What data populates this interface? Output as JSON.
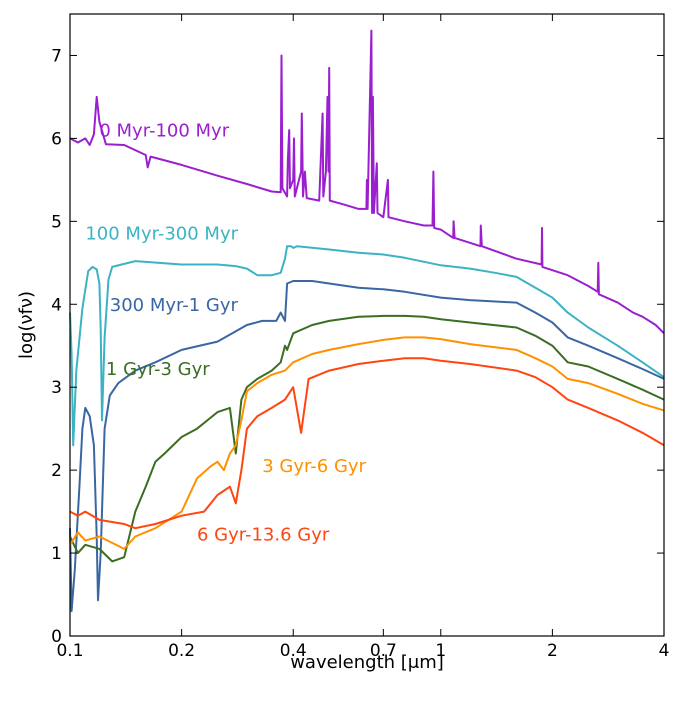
{
  "chart_data": {
    "type": "line",
    "title": "",
    "xlabel": "wavelength [μm]",
    "ylabel": "log(νfν)",
    "xscale": "log",
    "xlim": [
      0.1,
      4
    ],
    "ylim": [
      0,
      7.5
    ],
    "grid": false,
    "legend": "inline labels",
    "x_ticks": [
      {
        "value": 0.1,
        "label": "0.1"
      },
      {
        "value": 0.2,
        "label": "0.2"
      },
      {
        "value": 0.4,
        "label": "0.4"
      },
      {
        "value": 0.7,
        "label": "0.7"
      },
      {
        "value": 1,
        "label": "1"
      },
      {
        "value": 2,
        "label": "2"
      },
      {
        "value": 4,
        "label": "4"
      }
    ],
    "y_ticks": [
      {
        "value": 0,
        "label": "0"
      },
      {
        "value": 1,
        "label": "1"
      },
      {
        "value": 2,
        "label": "2"
      },
      {
        "value": 3,
        "label": "3"
      },
      {
        "value": 4,
        "label": "4"
      },
      {
        "value": 5,
        "label": "5"
      },
      {
        "value": 6,
        "label": "6"
      },
      {
        "value": 7,
        "label": "7"
      }
    ],
    "series": [
      {
        "name": "0 Myr-100 Myr",
        "color": "#9b1fcf",
        "label_at": [
          0.12,
          6.02
        ],
        "points": [
          [
            0.1,
            6.0
          ],
          [
            0.105,
            5.95
          ],
          [
            0.11,
            6.0
          ],
          [
            0.113,
            5.92
          ],
          [
            0.116,
            6.05
          ],
          [
            0.118,
            6.5
          ],
          [
            0.12,
            6.2
          ],
          [
            0.125,
            5.93
          ],
          [
            0.14,
            5.92
          ],
          [
            0.16,
            5.8
          ],
          [
            0.162,
            5.65
          ],
          [
            0.165,
            5.78
          ],
          [
            0.2,
            5.68
          ],
          [
            0.25,
            5.55
          ],
          [
            0.3,
            5.45
          ],
          [
            0.35,
            5.36
          ],
          [
            0.37,
            5.35
          ],
          [
            0.372,
            7.0
          ],
          [
            0.374,
            5.4
          ],
          [
            0.385,
            5.3
          ],
          [
            0.387,
            5.75
          ],
          [
            0.39,
            6.1
          ],
          [
            0.392,
            5.4
          ],
          [
            0.4,
            5.5
          ],
          [
            0.402,
            6.0
          ],
          [
            0.404,
            5.3
          ],
          [
            0.42,
            5.6
          ],
          [
            0.422,
            6.3
          ],
          [
            0.425,
            5.3
          ],
          [
            0.43,
            5.6
          ],
          [
            0.435,
            5.28
          ],
          [
            0.47,
            5.25
          ],
          [
            0.48,
            6.3
          ],
          [
            0.482,
            5.3
          ],
          [
            0.49,
            5.6
          ],
          [
            0.495,
            6.5
          ],
          [
            0.498,
            5.6
          ],
          [
            0.5,
            6.85
          ],
          [
            0.502,
            5.25
          ],
          [
            0.55,
            5.2
          ],
          [
            0.6,
            5.15
          ],
          [
            0.63,
            5.15
          ],
          [
            0.632,
            5.5
          ],
          [
            0.635,
            5.15
          ],
          [
            0.65,
            7.3
          ],
          [
            0.653,
            5.1
          ],
          [
            0.656,
            6.5
          ],
          [
            0.66,
            5.1
          ],
          [
            0.672,
            5.7
          ],
          [
            0.675,
            5.1
          ],
          [
            0.7,
            5.05
          ],
          [
            0.72,
            5.5
          ],
          [
            0.723,
            5.05
          ],
          [
            0.8,
            5.0
          ],
          [
            0.9,
            4.95
          ],
          [
            0.95,
            4.95
          ],
          [
            0.955,
            5.6
          ],
          [
            0.96,
            4.92
          ],
          [
            1.0,
            4.9
          ],
          [
            1.08,
            4.8
          ],
          [
            1.083,
            5.0
          ],
          [
            1.09,
            4.8
          ],
          [
            1.28,
            4.7
          ],
          [
            1.282,
            4.95
          ],
          [
            1.29,
            4.7
          ],
          [
            1.6,
            4.55
          ],
          [
            1.87,
            4.48
          ],
          [
            1.875,
            4.92
          ],
          [
            1.88,
            4.45
          ],
          [
            2.2,
            4.35
          ],
          [
            2.5,
            4.22
          ],
          [
            2.65,
            4.15
          ],
          [
            2.66,
            4.5
          ],
          [
            2.67,
            4.12
          ],
          [
            3.0,
            4.02
          ],
          [
            3.3,
            3.9
          ],
          [
            3.5,
            3.85
          ],
          [
            3.8,
            3.75
          ],
          [
            4.0,
            3.65
          ]
        ]
      },
      {
        "name": "100 Myr-300 Myr",
        "color": "#3bb3c3",
        "label_at": [
          0.11,
          4.78
        ],
        "points": [
          [
            0.1,
            3.9
          ],
          [
            0.101,
            3.4
          ],
          [
            0.102,
            2.3
          ],
          [
            0.104,
            3.2
          ],
          [
            0.108,
            3.95
          ],
          [
            0.112,
            4.4
          ],
          [
            0.115,
            4.45
          ],
          [
            0.118,
            4.42
          ],
          [
            0.12,
            4.25
          ],
          [
            0.121,
            3.7
          ],
          [
            0.122,
            2.6
          ],
          [
            0.124,
            3.6
          ],
          [
            0.127,
            4.3
          ],
          [
            0.13,
            4.45
          ],
          [
            0.15,
            4.52
          ],
          [
            0.2,
            4.48
          ],
          [
            0.25,
            4.48
          ],
          [
            0.28,
            4.46
          ],
          [
            0.3,
            4.43
          ],
          [
            0.32,
            4.35
          ],
          [
            0.35,
            4.35
          ],
          [
            0.37,
            4.38
          ],
          [
            0.38,
            4.55
          ],
          [
            0.385,
            4.7
          ],
          [
            0.395,
            4.7
          ],
          [
            0.4,
            4.68
          ],
          [
            0.41,
            4.7
          ],
          [
            0.5,
            4.66
          ],
          [
            0.6,
            4.62
          ],
          [
            0.7,
            4.6
          ],
          [
            0.8,
            4.56
          ],
          [
            1.0,
            4.47
          ],
          [
            1.2,
            4.43
          ],
          [
            1.4,
            4.38
          ],
          [
            1.6,
            4.33
          ],
          [
            1.8,
            4.2
          ],
          [
            2.0,
            4.08
          ],
          [
            2.2,
            3.9
          ],
          [
            2.5,
            3.72
          ],
          [
            3.0,
            3.5
          ],
          [
            3.5,
            3.3
          ],
          [
            4.0,
            3.12
          ]
        ]
      },
      {
        "name": "300 Myr-1 Gyr",
        "color": "#3a67a2",
        "label_at": [
          0.128,
          3.92
        ],
        "points": [
          [
            0.1,
            1.3
          ],
          [
            0.101,
            0.3
          ],
          [
            0.103,
            0.8
          ],
          [
            0.106,
            1.8
          ],
          [
            0.108,
            2.5
          ],
          [
            0.11,
            2.75
          ],
          [
            0.113,
            2.65
          ],
          [
            0.116,
            2.3
          ],
          [
            0.118,
            1.2
          ],
          [
            0.119,
            0.43
          ],
          [
            0.121,
            1.0
          ],
          [
            0.124,
            2.5
          ],
          [
            0.128,
            2.9
          ],
          [
            0.135,
            3.05
          ],
          [
            0.15,
            3.2
          ],
          [
            0.17,
            3.3
          ],
          [
            0.2,
            3.45
          ],
          [
            0.25,
            3.55
          ],
          [
            0.3,
            3.75
          ],
          [
            0.33,
            3.8
          ],
          [
            0.36,
            3.8
          ],
          [
            0.37,
            3.9
          ],
          [
            0.38,
            3.8
          ],
          [
            0.385,
            4.25
          ],
          [
            0.4,
            4.28
          ],
          [
            0.45,
            4.28
          ],
          [
            0.5,
            4.25
          ],
          [
            0.6,
            4.2
          ],
          [
            0.7,
            4.18
          ],
          [
            0.8,
            4.15
          ],
          [
            1.0,
            4.08
          ],
          [
            1.2,
            4.05
          ],
          [
            1.6,
            4.02
          ],
          [
            1.8,
            3.9
          ],
          [
            2.0,
            3.78
          ],
          [
            2.2,
            3.6
          ],
          [
            2.5,
            3.5
          ],
          [
            3.0,
            3.35
          ],
          [
            3.5,
            3.22
          ],
          [
            4.0,
            3.1
          ]
        ]
      },
      {
        "name": "1 Gyr-3 Gyr",
        "color": "#3b6e22",
        "label_at": [
          0.125,
          3.15
        ],
        "points": [
          [
            0.1,
            1.2
          ],
          [
            0.105,
            1.0
          ],
          [
            0.11,
            1.1
          ],
          [
            0.12,
            1.05
          ],
          [
            0.13,
            0.9
          ],
          [
            0.14,
            0.95
          ],
          [
            0.15,
            1.5
          ],
          [
            0.16,
            1.8
          ],
          [
            0.17,
            2.1
          ],
          [
            0.18,
            2.2
          ],
          [
            0.2,
            2.4
          ],
          [
            0.22,
            2.5
          ],
          [
            0.25,
            2.7
          ],
          [
            0.27,
            2.75
          ],
          [
            0.28,
            2.2
          ],
          [
            0.29,
            2.85
          ],
          [
            0.3,
            3.0
          ],
          [
            0.32,
            3.1
          ],
          [
            0.35,
            3.2
          ],
          [
            0.37,
            3.3
          ],
          [
            0.38,
            3.5
          ],
          [
            0.385,
            3.45
          ],
          [
            0.4,
            3.65
          ],
          [
            0.45,
            3.75
          ],
          [
            0.5,
            3.8
          ],
          [
            0.6,
            3.85
          ],
          [
            0.7,
            3.86
          ],
          [
            0.8,
            3.86
          ],
          [
            0.9,
            3.85
          ],
          [
            1.0,
            3.82
          ],
          [
            1.2,
            3.78
          ],
          [
            1.6,
            3.72
          ],
          [
            1.8,
            3.62
          ],
          [
            2.0,
            3.5
          ],
          [
            2.2,
            3.3
          ],
          [
            2.5,
            3.25
          ],
          [
            3.0,
            3.1
          ],
          [
            3.5,
            2.97
          ],
          [
            4.0,
            2.85
          ]
        ]
      },
      {
        "name": "3 Gyr-6 Gyr",
        "color": "#ff9100",
        "label_at": [
          0.33,
          1.98
        ],
        "points": [
          [
            0.1,
            1.1
          ],
          [
            0.105,
            1.25
          ],
          [
            0.11,
            1.15
          ],
          [
            0.12,
            1.2
          ],
          [
            0.14,
            1.05
          ],
          [
            0.15,
            1.2
          ],
          [
            0.17,
            1.3
          ],
          [
            0.2,
            1.5
          ],
          [
            0.22,
            1.9
          ],
          [
            0.24,
            2.05
          ],
          [
            0.25,
            2.1
          ],
          [
            0.26,
            2.0
          ],
          [
            0.27,
            2.2
          ],
          [
            0.28,
            2.3
          ],
          [
            0.29,
            2.6
          ],
          [
            0.3,
            2.95
          ],
          [
            0.32,
            3.05
          ],
          [
            0.35,
            3.15
          ],
          [
            0.38,
            3.2
          ],
          [
            0.4,
            3.3
          ],
          [
            0.45,
            3.4
          ],
          [
            0.5,
            3.45
          ],
          [
            0.6,
            3.52
          ],
          [
            0.7,
            3.57
          ],
          [
            0.8,
            3.6
          ],
          [
            0.9,
            3.6
          ],
          [
            1.0,
            3.58
          ],
          [
            1.2,
            3.52
          ],
          [
            1.6,
            3.45
          ],
          [
            1.8,
            3.35
          ],
          [
            2.0,
            3.25
          ],
          [
            2.2,
            3.1
          ],
          [
            2.5,
            3.05
          ],
          [
            3.0,
            2.92
          ],
          [
            3.5,
            2.8
          ],
          [
            4.0,
            2.72
          ]
        ]
      },
      {
        "name": "6 Gyr-13.6 Gyr",
        "color": "#ff4510",
        "label_at": [
          0.22,
          1.15
        ],
        "points": [
          [
            0.1,
            1.5
          ],
          [
            0.105,
            1.45
          ],
          [
            0.11,
            1.5
          ],
          [
            0.12,
            1.4
          ],
          [
            0.14,
            1.35
          ],
          [
            0.15,
            1.3
          ],
          [
            0.17,
            1.35
          ],
          [
            0.2,
            1.45
          ],
          [
            0.23,
            1.5
          ],
          [
            0.25,
            1.7
          ],
          [
            0.27,
            1.8
          ],
          [
            0.28,
            1.6
          ],
          [
            0.29,
            2.0
          ],
          [
            0.3,
            2.5
          ],
          [
            0.32,
            2.65
          ],
          [
            0.35,
            2.75
          ],
          [
            0.38,
            2.85
          ],
          [
            0.4,
            3.0
          ],
          [
            0.42,
            2.45
          ],
          [
            0.44,
            3.1
          ],
          [
            0.5,
            3.2
          ],
          [
            0.6,
            3.28
          ],
          [
            0.7,
            3.32
          ],
          [
            0.8,
            3.35
          ],
          [
            0.9,
            3.35
          ],
          [
            1.0,
            3.32
          ],
          [
            1.2,
            3.28
          ],
          [
            1.6,
            3.2
          ],
          [
            1.8,
            3.12
          ],
          [
            2.0,
            3.0
          ],
          [
            2.2,
            2.85
          ],
          [
            2.5,
            2.75
          ],
          [
            3.0,
            2.6
          ],
          [
            3.5,
            2.45
          ],
          [
            4.0,
            2.3
          ]
        ]
      }
    ]
  }
}
